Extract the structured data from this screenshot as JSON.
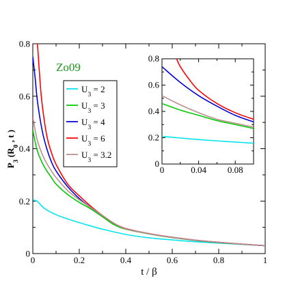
{
  "chart_data": [
    {
      "type": "line",
      "xlabel": "t / β",
      "ylabel": "P_3 (R_0 , t )",
      "xlim": [
        0,
        1
      ],
      "ylim": [
        0,
        0.8
      ],
      "xticks": [
        "0",
        "0.2",
        "0.4",
        "0.6",
        "0.8",
        "1"
      ],
      "yticks": [
        "0",
        "0.2",
        "0.4",
        "0.6",
        "0.8"
      ],
      "annotation": "Zo09",
      "legend_position": "upper-left",
      "series": [
        {
          "name": "U_3 = 2",
          "color": "#00e5ee",
          "x": [
            0,
            0.02,
            0.05,
            0.1,
            0.15,
            0.2,
            0.25,
            0.3,
            0.4,
            0.5,
            0.6,
            0.7,
            0.8,
            0.9,
            1.0
          ],
          "y": [
            0.205,
            0.198,
            0.172,
            0.148,
            0.132,
            0.118,
            0.105,
            0.093,
            0.073,
            0.06,
            0.052,
            0.045,
            0.04,
            0.035,
            0.03
          ]
        },
        {
          "name": "U_3 = 3",
          "color": "#00cc00",
          "x": [
            0,
            0.02,
            0.05,
            0.08,
            0.1,
            0.15,
            0.2,
            0.25,
            0.3,
            0.35,
            0.4,
            0.5,
            0.6,
            0.7,
            0.8,
            0.9,
            1.0
          ],
          "y": [
            0.47,
            0.39,
            0.33,
            0.29,
            0.265,
            0.225,
            0.195,
            0.17,
            0.14,
            0.11,
            0.093,
            0.075,
            0.061,
            0.05,
            0.042,
            0.036,
            0.03
          ]
        },
        {
          "name": "U_3 = 4",
          "color": "#0000dd",
          "x": [
            0,
            0.01,
            0.02,
            0.04,
            0.06,
            0.08,
            0.1,
            0.15,
            0.2,
            0.25,
            0.3,
            0.35,
            0.4,
            0.5,
            0.6,
            0.7,
            0.8,
            0.9,
            1.0
          ],
          "y": [
            0.75,
            0.67,
            0.58,
            0.47,
            0.4,
            0.35,
            0.315,
            0.255,
            0.21,
            0.175,
            0.145,
            0.115,
            0.095,
            0.076,
            0.062,
            0.051,
            0.043,
            0.036,
            0.03
          ]
        },
        {
          "name": "U_3 = 6",
          "color": "#ff0000",
          "x": [
            0.02,
            0.03,
            0.04,
            0.06,
            0.08,
            0.1,
            0.15,
            0.2,
            0.25,
            0.3,
            0.35,
            0.4,
            0.5,
            0.6,
            0.7,
            0.8,
            0.9,
            1.0
          ],
          "y": [
            0.8,
            0.67,
            0.57,
            0.45,
            0.385,
            0.34,
            0.265,
            0.22,
            0.18,
            0.145,
            0.115,
            0.095,
            0.076,
            0.062,
            0.051,
            0.043,
            0.036,
            0.03
          ]
        },
        {
          "name": "U_3 = 3.2",
          "color": "#bc8f8f",
          "x": [
            0,
            0.02,
            0.05,
            0.08,
            0.1,
            0.15,
            0.2,
            0.25,
            0.3,
            0.35,
            0.4,
            0.5,
            0.6,
            0.7,
            0.8,
            0.9,
            1.0
          ],
          "y": [
            0.52,
            0.43,
            0.36,
            0.315,
            0.29,
            0.24,
            0.205,
            0.175,
            0.145,
            0.115,
            0.094,
            0.076,
            0.062,
            0.051,
            0.043,
            0.036,
            0.03
          ]
        }
      ]
    },
    {
      "type": "line",
      "xlim": [
        0,
        0.1
      ],
      "ylim": [
        0,
        0.8
      ],
      "xticks": [
        "0",
        "0.04",
        "0.08"
      ],
      "yticks": [
        "0",
        "0.2",
        "0.4",
        "0.6",
        "0.8"
      ],
      "series": [
        {
          "color": "#00e5ee",
          "x": [
            0,
            0.02,
            0.04,
            0.06,
            0.08,
            0.1
          ],
          "y": [
            0.21,
            0.198,
            0.186,
            0.176,
            0.167,
            0.158
          ]
        },
        {
          "color": "#00cc00",
          "x": [
            0,
            0.02,
            0.04,
            0.06,
            0.08,
            0.1
          ],
          "y": [
            0.46,
            0.41,
            0.37,
            0.33,
            0.3,
            0.27
          ]
        },
        {
          "color": "#0000dd",
          "x": [
            0,
            0.02,
            0.04,
            0.06,
            0.08,
            0.1
          ],
          "y": [
            0.74,
            0.62,
            0.52,
            0.44,
            0.37,
            0.32
          ]
        },
        {
          "color": "#ff0000",
          "x": [
            0.016,
            0.02,
            0.03,
            0.04,
            0.06,
            0.08,
            0.1
          ],
          "y": [
            0.8,
            0.74,
            0.64,
            0.56,
            0.46,
            0.39,
            0.34
          ]
        },
        {
          "color": "#bc8f8f",
          "x": [
            0,
            0.02,
            0.04,
            0.06,
            0.08,
            0.1
          ],
          "y": [
            0.52,
            0.45,
            0.39,
            0.34,
            0.31,
            0.28
          ]
        }
      ]
    }
  ]
}
